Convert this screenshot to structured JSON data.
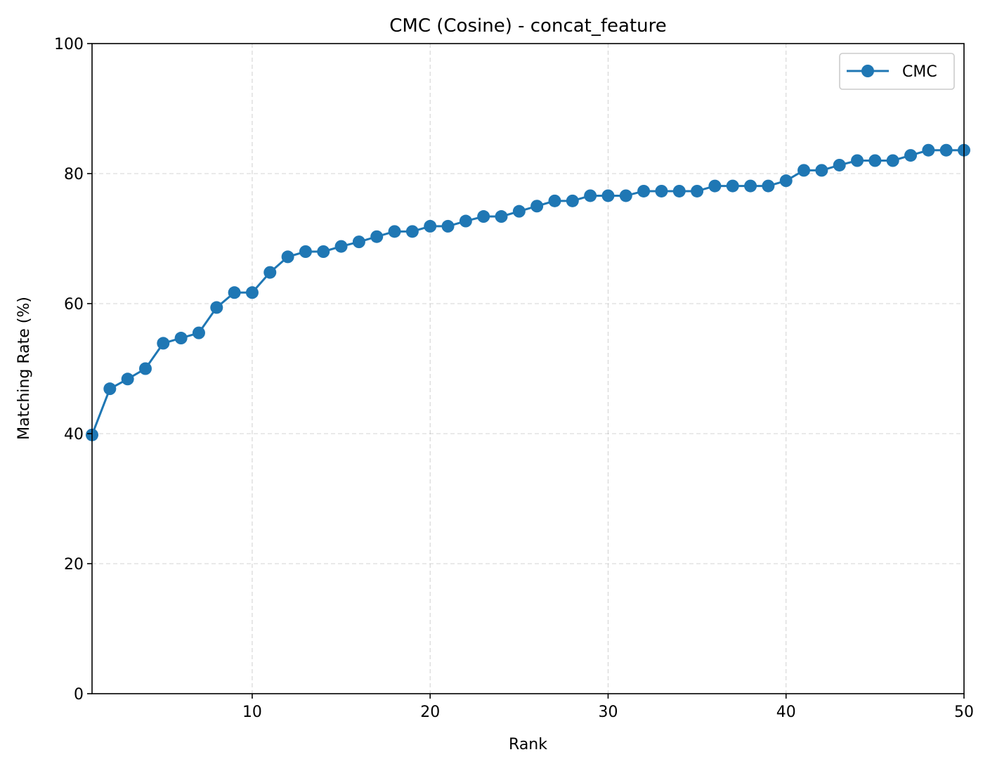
{
  "chart_data": {
    "type": "line",
    "title": "CMC (Cosine) - concat_feature",
    "xlabel": "Rank",
    "ylabel": "Matching Rate (%)",
    "xlim": [
      1,
      50
    ],
    "ylim": [
      0,
      100
    ],
    "xticks": [
      10,
      20,
      30,
      40,
      50
    ],
    "yticks": [
      0,
      20,
      40,
      60,
      80,
      100
    ],
    "grid": true,
    "legend_position": "top-right",
    "series": [
      {
        "name": "CMC",
        "color": "#1f77b4",
        "marker": "circle",
        "x": [
          1,
          2,
          3,
          4,
          5,
          6,
          7,
          8,
          9,
          10,
          11,
          12,
          13,
          14,
          15,
          16,
          17,
          18,
          19,
          20,
          21,
          22,
          23,
          24,
          25,
          26,
          27,
          28,
          29,
          30,
          31,
          32,
          33,
          34,
          35,
          36,
          37,
          38,
          39,
          40,
          41,
          42,
          43,
          44,
          45,
          46,
          47,
          48,
          49,
          50
        ],
        "values": [
          39.8,
          46.9,
          48.4,
          50.0,
          53.9,
          54.7,
          55.5,
          59.4,
          61.7,
          61.7,
          64.8,
          67.2,
          68.0,
          68.0,
          68.8,
          69.5,
          70.3,
          71.1,
          71.1,
          71.9,
          71.9,
          72.7,
          73.4,
          73.4,
          74.2,
          75.0,
          75.8,
          75.8,
          76.6,
          76.6,
          76.6,
          77.3,
          77.3,
          77.3,
          77.3,
          78.1,
          78.1,
          78.1,
          78.1,
          78.9,
          80.5,
          80.5,
          81.3,
          82.0,
          82.0,
          82.0,
          82.8,
          83.6,
          83.6,
          83.6
        ]
      }
    ]
  }
}
